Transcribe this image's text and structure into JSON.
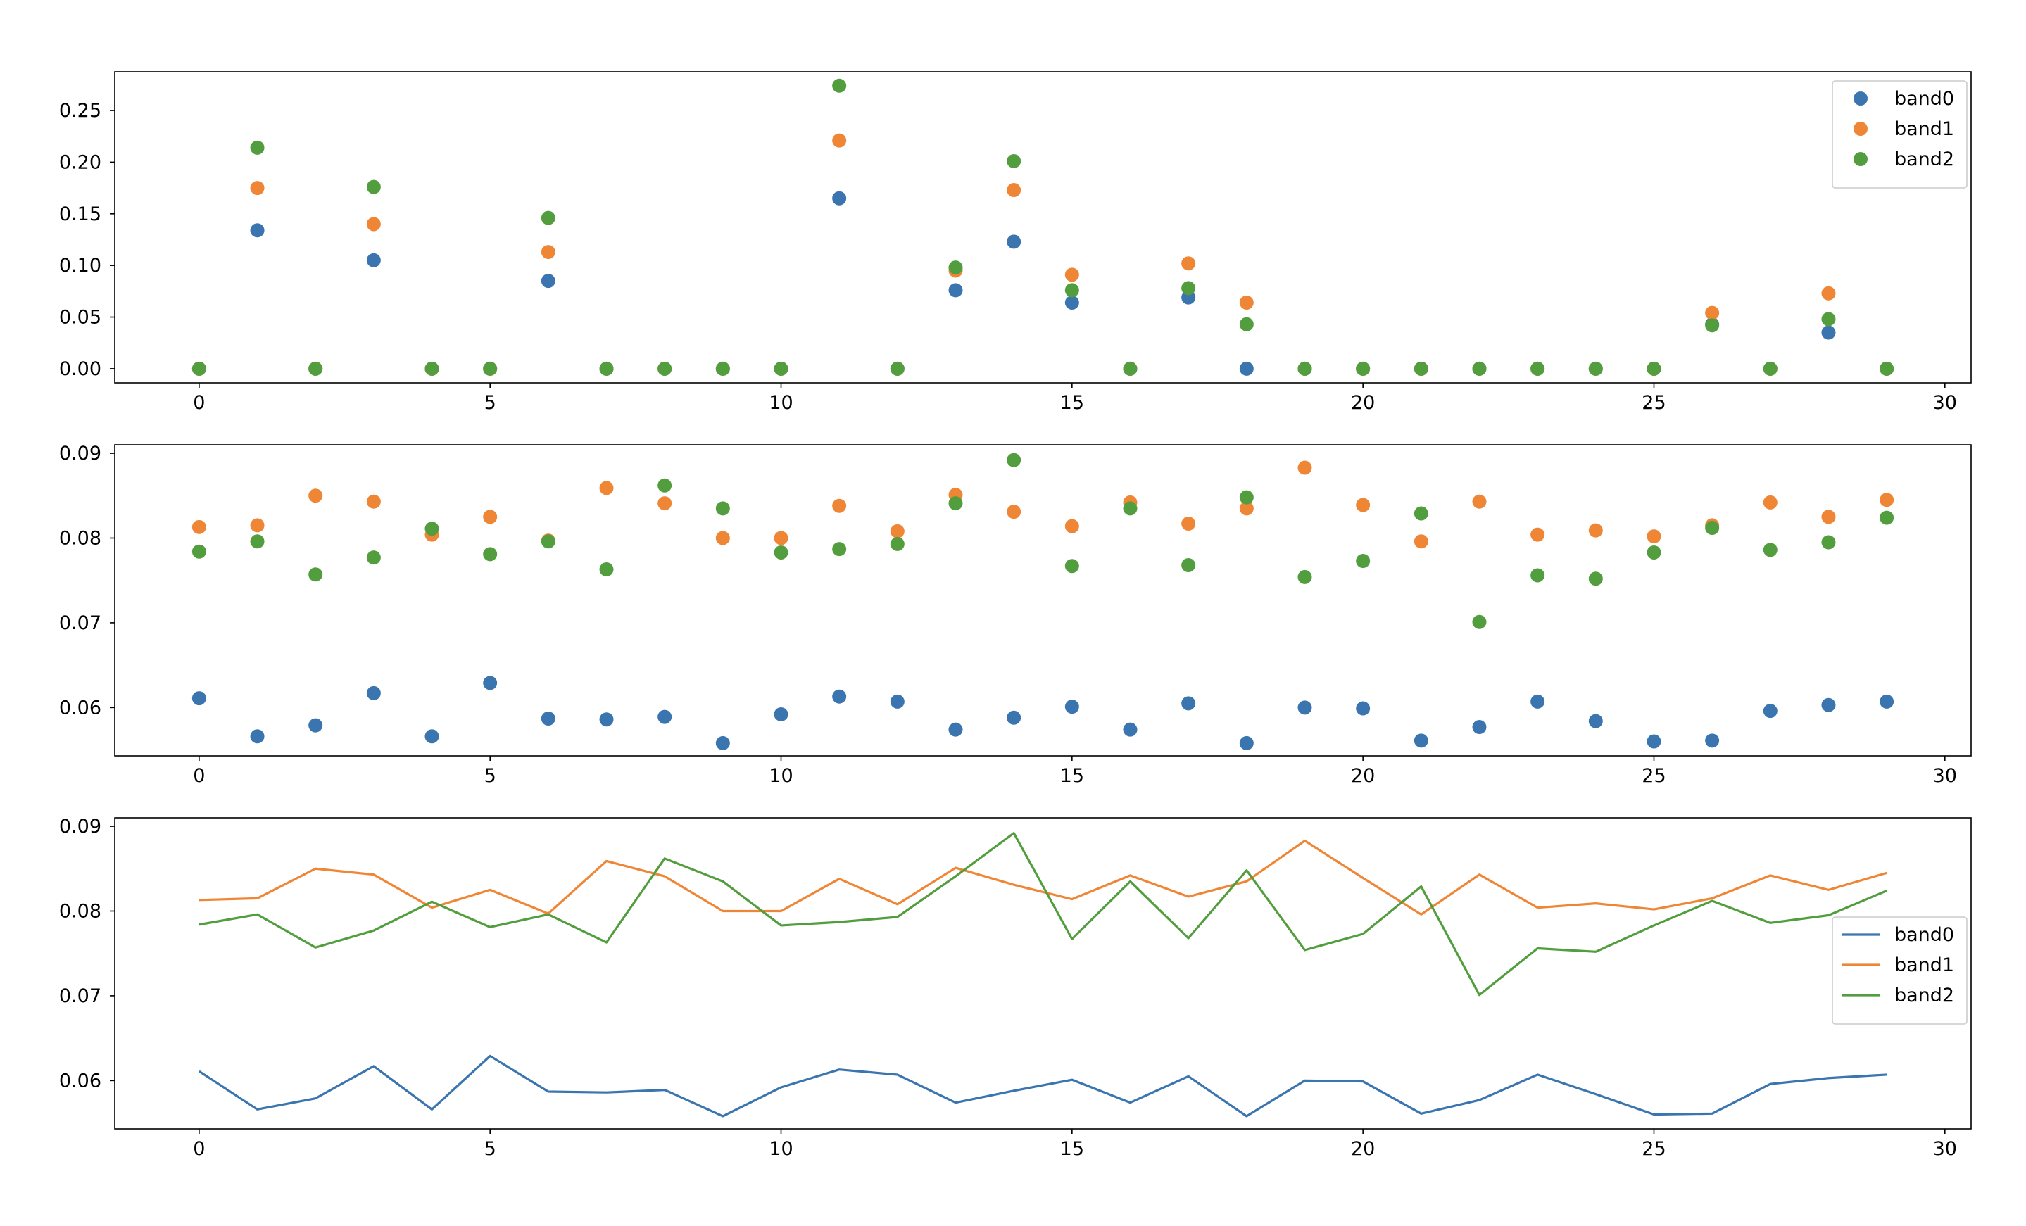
{
  "colors": {
    "band0": "#3a75af",
    "band1": "#ef8636",
    "band2": "#529e3e",
    "axis": "#000000",
    "background": "#ffffff"
  },
  "chart_data": [
    {
      "type": "scatter",
      "title": "",
      "xlabel": "",
      "ylabel": "",
      "xlim": [
        -1.45,
        30.45
      ],
      "ylim": [
        -0.0137,
        0.2875
      ],
      "xticks": [
        "0",
        "5",
        "10",
        "15",
        "20",
        "25",
        "30"
      ],
      "yticks": [
        "0.00",
        "0.05",
        "0.10",
        "0.15",
        "0.20",
        "0.25"
      ],
      "grid": false,
      "legend": "top-right",
      "x": [
        0,
        1,
        2,
        3,
        4,
        5,
        6,
        7,
        8,
        9,
        10,
        11,
        12,
        13,
        14,
        15,
        16,
        17,
        18,
        19,
        20,
        21,
        22,
        23,
        24,
        25,
        26,
        27,
        28,
        29
      ],
      "series": [
        {
          "name": "band0",
          "values": [
            0,
            0.134,
            0,
            0.105,
            0,
            0,
            0.085,
            0,
            0,
            0,
            0,
            0.165,
            0,
            0.076,
            0.123,
            0.064,
            0,
            0.069,
            0,
            0,
            0,
            0,
            0,
            0,
            0,
            0,
            0.043,
            0,
            0.035,
            0
          ]
        },
        {
          "name": "band1",
          "values": [
            0,
            0.175,
            0,
            0.14,
            0,
            0,
            0.113,
            0,
            0,
            0,
            0,
            0.221,
            0,
            0.095,
            0.173,
            0.091,
            0,
            0.102,
            0.064,
            0,
            0,
            0,
            0,
            0,
            0,
            0,
            0.054,
            0,
            0.073,
            0
          ]
        },
        {
          "name": "band2",
          "values": [
            0,
            0.214,
            0,
            0.176,
            0,
            0,
            0.146,
            0,
            0,
            0,
            0,
            0.274,
            0,
            0.098,
            0.201,
            0.076,
            0,
            0.078,
            0.043,
            0,
            0,
            0,
            0,
            0,
            0,
            0,
            0.042,
            0,
            0.048,
            0
          ]
        }
      ]
    },
    {
      "type": "scatter",
      "title": "",
      "xlabel": "",
      "ylabel": "",
      "xlim": [
        -1.45,
        30.45
      ],
      "ylim": [
        0.0543,
        0.091
      ],
      "xticks": [
        "0",
        "5",
        "10",
        "15",
        "20",
        "25",
        "30"
      ],
      "yticks": [
        "0.06",
        "0.07",
        "0.08",
        "0.09"
      ],
      "grid": false,
      "legend": "none",
      "x": [
        0,
        1,
        2,
        3,
        4,
        5,
        6,
        7,
        8,
        9,
        10,
        11,
        12,
        13,
        14,
        15,
        16,
        17,
        18,
        19,
        20,
        21,
        22,
        23,
        24,
        25,
        26,
        27,
        28,
        29
      ],
      "series": [
        {
          "name": "band0",
          "values": [
            0.0611,
            0.0566,
            0.0579,
            0.0617,
            0.0566,
            0.0629,
            0.0587,
            0.0586,
            0.0589,
            0.0558,
            0.0592,
            0.0613,
            0.0607,
            0.0574,
            0.0588,
            0.0601,
            0.0574,
            0.0605,
            0.0558,
            0.06,
            0.0599,
            0.0561,
            0.0577,
            0.0607,
            0.0584,
            0.056,
            0.0561,
            0.0596,
            0.0603,
            0.0607
          ]
        },
        {
          "name": "band1",
          "values": [
            0.0813,
            0.0815,
            0.085,
            0.0843,
            0.0804,
            0.0825,
            0.0797,
            0.0859,
            0.0841,
            0.08,
            0.08,
            0.0838,
            0.0808,
            0.0851,
            0.0831,
            0.0814,
            0.0842,
            0.0817,
            0.0835,
            0.0883,
            0.0839,
            0.0796,
            0.0843,
            0.0804,
            0.0809,
            0.0802,
            0.0815,
            0.0842,
            0.0825,
            0.0845
          ]
        },
        {
          "name": "band2",
          "values": [
            0.0784,
            0.0796,
            0.0757,
            0.0777,
            0.0811,
            0.0781,
            0.0796,
            0.0763,
            0.0862,
            0.0835,
            0.0783,
            0.0787,
            0.0793,
            0.0841,
            0.0892,
            0.0767,
            0.0835,
            0.0768,
            0.0848,
            0.0754,
            0.0773,
            0.0829,
            0.0701,
            0.0756,
            0.0752,
            0.0783,
            0.0812,
            0.0786,
            0.0795,
            0.0824
          ]
        }
      ]
    },
    {
      "type": "line",
      "title": "",
      "xlabel": "",
      "ylabel": "",
      "xlim": [
        -1.45,
        30.45
      ],
      "ylim": [
        0.0543,
        0.091
      ],
      "xticks": [
        "0",
        "5",
        "10",
        "15",
        "20",
        "25",
        "30"
      ],
      "yticks": [
        "0.06",
        "0.07",
        "0.08",
        "0.09"
      ],
      "grid": false,
      "legend": "center-right",
      "x": [
        0,
        1,
        2,
        3,
        4,
        5,
        6,
        7,
        8,
        9,
        10,
        11,
        12,
        13,
        14,
        15,
        16,
        17,
        18,
        19,
        20,
        21,
        22,
        23,
        24,
        25,
        26,
        27,
        28,
        29
      ],
      "series": [
        {
          "name": "band0",
          "values": [
            0.0611,
            0.0566,
            0.0579,
            0.0617,
            0.0566,
            0.0629,
            0.0587,
            0.0586,
            0.0589,
            0.0558,
            0.0592,
            0.0613,
            0.0607,
            0.0574,
            0.0588,
            0.0601,
            0.0574,
            0.0605,
            0.0558,
            0.06,
            0.0599,
            0.0561,
            0.0577,
            0.0607,
            0.0584,
            0.056,
            0.0561,
            0.0596,
            0.0603,
            0.0607
          ]
        },
        {
          "name": "band1",
          "values": [
            0.0813,
            0.0815,
            0.085,
            0.0843,
            0.0804,
            0.0825,
            0.0797,
            0.0859,
            0.0841,
            0.08,
            0.08,
            0.0838,
            0.0808,
            0.0851,
            0.0831,
            0.0814,
            0.0842,
            0.0817,
            0.0835,
            0.0883,
            0.0839,
            0.0796,
            0.0843,
            0.0804,
            0.0809,
            0.0802,
            0.0815,
            0.0842,
            0.0825,
            0.0845
          ]
        },
        {
          "name": "band2",
          "values": [
            0.0784,
            0.0796,
            0.0757,
            0.0777,
            0.0811,
            0.0781,
            0.0796,
            0.0763,
            0.0862,
            0.0835,
            0.0783,
            0.0787,
            0.0793,
            0.0841,
            0.0892,
            0.0767,
            0.0835,
            0.0768,
            0.0848,
            0.0754,
            0.0773,
            0.0829,
            0.0701,
            0.0756,
            0.0752,
            0.0783,
            0.0812,
            0.0786,
            0.0795,
            0.0824
          ]
        }
      ]
    }
  ]
}
